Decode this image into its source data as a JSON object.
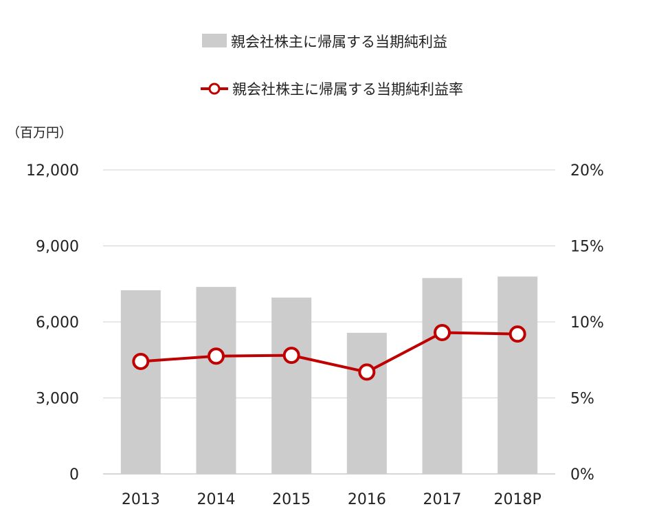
{
  "chart_data": {
    "type": "bar",
    "unit_label": "（百万円）",
    "categories": [
      "2013",
      "2014",
      "2015",
      "2016",
      "2017",
      "2018P"
    ],
    "series": [
      {
        "name": "親会社株主に帰属する当期純利益",
        "type": "bar",
        "axis": "left",
        "color": "#cccccc",
        "values": [
          7250,
          7380,
          6960,
          5570,
          7730,
          7790
        ]
      },
      {
        "name": "親会社株主に帰属する当期純利益率",
        "type": "line",
        "axis": "right",
        "color": "#c00000",
        "values": [
          7.4,
          7.75,
          7.8,
          6.7,
          9.3,
          9.2
        ]
      }
    ],
    "left_axis": {
      "ylim": [
        0,
        12000
      ],
      "ticks": [
        "0",
        "3,000",
        "6,000",
        "9,000",
        "12,000"
      ],
      "tick_values": [
        0,
        3000,
        6000,
        9000,
        12000
      ]
    },
    "right_axis": {
      "ylim": [
        0,
        20
      ],
      "ticks": [
        "0%",
        "5%",
        "10%",
        "15%",
        "20%"
      ],
      "tick_values": [
        0,
        5,
        10,
        15,
        20
      ]
    },
    "grid": true,
    "legend_position": "top"
  }
}
